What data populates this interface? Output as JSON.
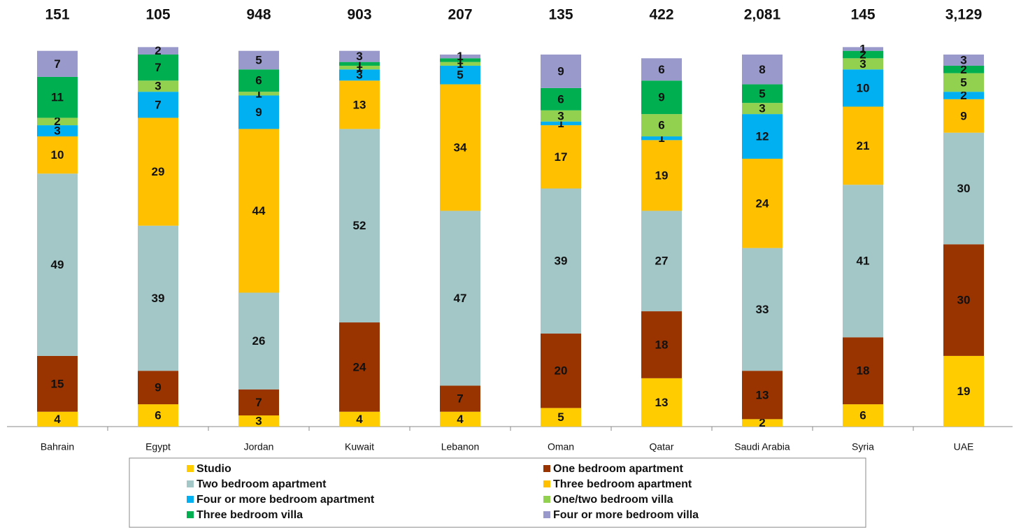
{
  "chart_data": {
    "type": "stacked_bar",
    "categories": [
      "Bahrain",
      "Egypt",
      "Jordan",
      "Kuwait",
      "Lebanon",
      "Oman",
      "Qatar",
      "Saudi Arabia",
      "Syria",
      "UAE"
    ],
    "totals": {
      "values": [
        151,
        105,
        948,
        903,
        207,
        135,
        422,
        2081,
        145,
        3129
      ],
      "value_labels": [
        "151",
        "105",
        "948",
        "903",
        "207",
        "135",
        "422",
        "2,081",
        "145",
        "3,129"
      ]
    },
    "ylim": [
      0,
      100
    ],
    "series": [
      {
        "name": "Studio",
        "color": "#ffcc00",
        "values": [
          4,
          6,
          3,
          4,
          4,
          5,
          13,
          2,
          6,
          19
        ]
      },
      {
        "name": "One bedroom apartment",
        "color": "#993300",
        "values": [
          15,
          9,
          7,
          24,
          7,
          20,
          18,
          13,
          18,
          30
        ]
      },
      {
        "name": "Two bedroom apartment",
        "color": "#a3c6c6",
        "values": [
          49,
          39,
          26,
          52,
          47,
          39,
          27,
          33,
          41,
          30
        ]
      },
      {
        "name": "Three bedroom apartment",
        "color": "#ffc000",
        "values": [
          10,
          29,
          44,
          13,
          34,
          17,
          19,
          24,
          21,
          9
        ]
      },
      {
        "name": "Four or more bedroom apartment",
        "color": "#00b0f0",
        "values": [
          3,
          7,
          9,
          3,
          5,
          1,
          1,
          12,
          10,
          2
        ]
      },
      {
        "name": "One/two bedroom villa",
        "color": "#92d050",
        "values": [
          2,
          3,
          1,
          1,
          1,
          3,
          6,
          3,
          3,
          5
        ]
      },
      {
        "name": "Three bedroom villa",
        "color": "#00b050",
        "values": [
          11,
          7,
          6,
          1,
          1,
          6,
          9,
          5,
          2,
          2
        ]
      },
      {
        "name": "Four or more bedroom villa",
        "color": "#9999cc",
        "values": [
          7,
          2,
          5,
          3,
          1,
          9,
          6,
          8,
          1,
          3
        ]
      }
    ]
  }
}
